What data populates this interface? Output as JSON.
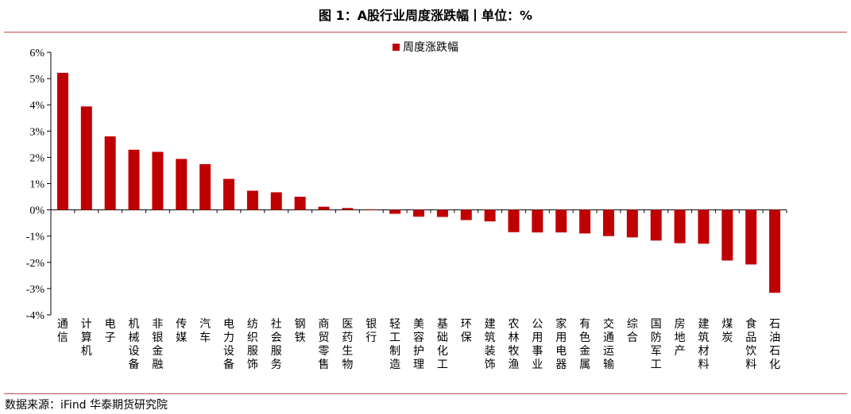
{
  "figure": {
    "title": "图 1：A股行业周度涨跌幅丨单位：%",
    "source": "数据来源：iFind 华泰期货研究院"
  },
  "chart_data": {
    "type": "bar",
    "title": "",
    "xlabel": "",
    "ylabel": "",
    "ylim": [
      -4,
      6
    ],
    "yticks": [
      "6%",
      "5%",
      "4%",
      "3%",
      "2%",
      "1%",
      "0%",
      "-1%",
      "-2%",
      "-3%",
      "-4%"
    ],
    "grid": false,
    "legend": {
      "position": "top-center"
    },
    "color": "#c00000",
    "categories": [
      "通信",
      "计算机",
      "电子",
      "机械设备",
      "非银金融",
      "传媒",
      "汽车",
      "电力设备",
      "纺织服饰",
      "社会服务",
      "钢铁",
      "商贸零售",
      "医药生物",
      "银行",
      "轻工制造",
      "美容护理",
      "基础化工",
      "环保",
      "建筑装饰",
      "农林牧渔",
      "公用事业",
      "家用电器",
      "有色金属",
      "交通运输",
      "综合",
      "国防军工",
      "房地产",
      "建筑材料",
      "煤炭",
      "食品饮料",
      "石油石化"
    ],
    "series": [
      {
        "name": "周度涨跌幅",
        "values": [
          5.22,
          3.94,
          2.8,
          2.29,
          2.21,
          1.94,
          1.74,
          1.18,
          0.73,
          0.67,
          0.5,
          0.12,
          0.07,
          0.02,
          -0.15,
          -0.26,
          -0.27,
          -0.39,
          -0.44,
          -0.85,
          -0.86,
          -0.86,
          -0.9,
          -1.0,
          -1.05,
          -1.17,
          -1.27,
          -1.29,
          -1.93,
          -2.08,
          -3.16
        ]
      }
    ]
  }
}
